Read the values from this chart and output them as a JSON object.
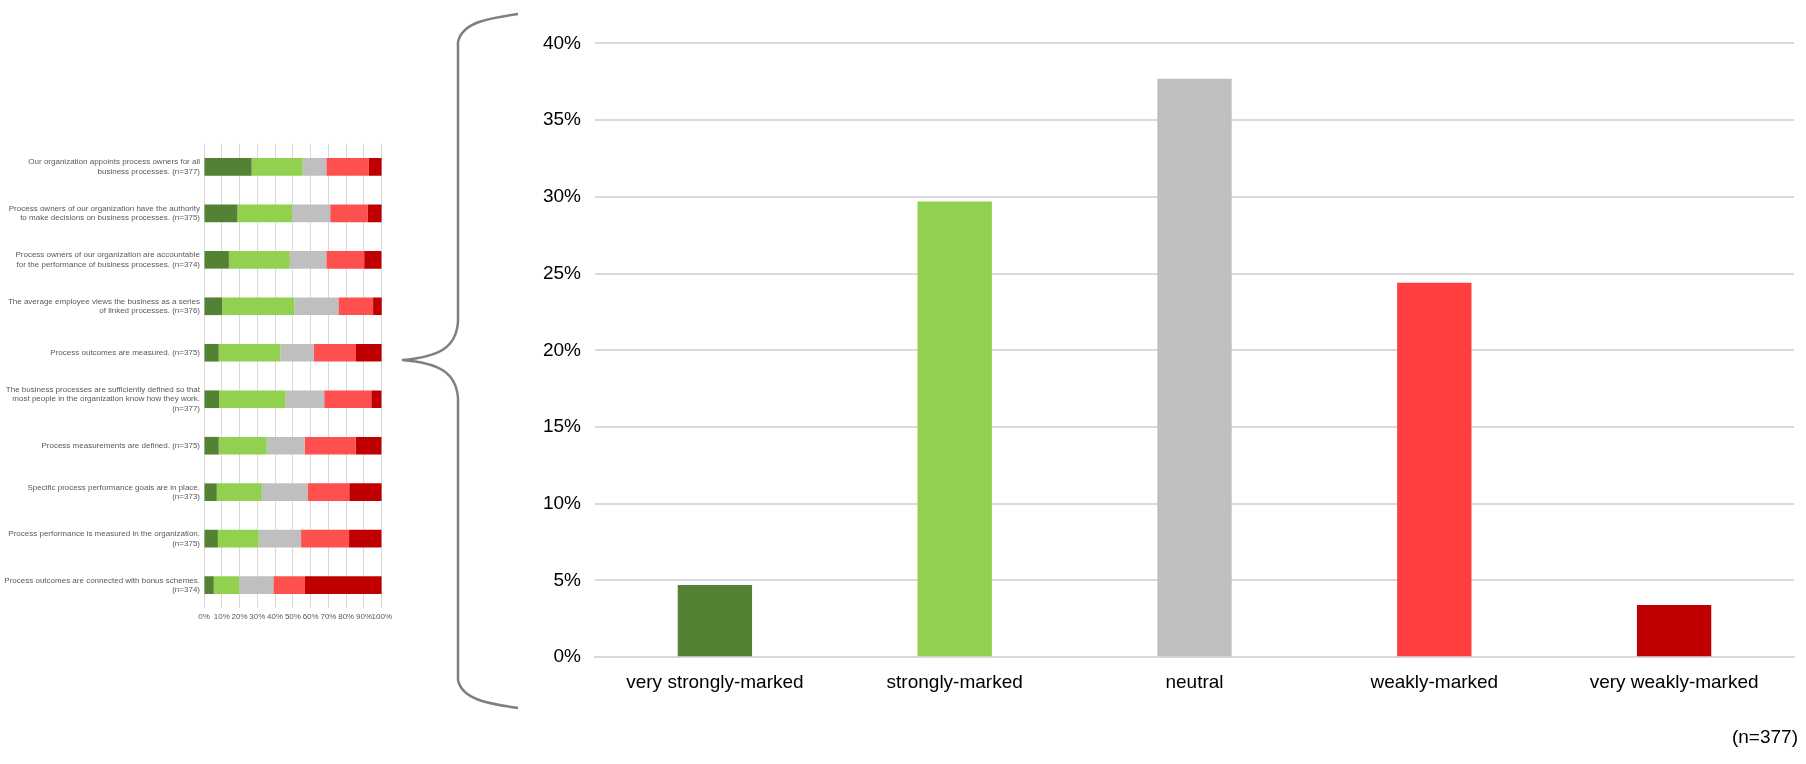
{
  "chart_data": [
    {
      "type": "bar",
      "orientation": "horizontal",
      "stacked": true,
      "categories": [
        "Our organization appoints process owners for all business processes. (n=377)",
        "Process owners of our organization have the authority to make decisions on business processes. (n=375)",
        "Process owners of our organization are accountable for the performance of business processes. (n=374)",
        "The average employee views the business as a series of linked processes. (n=376)",
        "Process outcomes are measured. (n=375)",
        "The business processes are sufficiently defined so that most people in the organization know how they work. (n=377)",
        "Process measurements are defined. (n=375)",
        "Specific process performance goals are in place. (n=373)",
        "Process performance is measured in the organization. (n=375)",
        "Process outcomes are connected with bonus schemes. (n=374)"
      ],
      "series": [
        {
          "color": "#548235",
          "values": [
            26.8,
            18.8,
            14,
            10.2,
            8.3,
            8.5,
            8.3,
            7.2,
            7.8,
            5.5
          ]
        },
        {
          "color": "#92d050",
          "values": [
            28.7,
            30.7,
            34.3,
            40.7,
            34.7,
            37.3,
            27,
            25.3,
            23,
            14.3
          ]
        },
        {
          "color": "#bfbfbf",
          "values": [
            13.3,
            21.5,
            20.5,
            24.7,
            18.8,
            21.8,
            21.3,
            25.7,
            23.8,
            19.2
          ]
        },
        {
          "color": "#ff5050",
          "values": [
            23.7,
            21.2,
            21.3,
            19.5,
            23.7,
            26.5,
            28.8,
            23.5,
            27,
            17.8
          ]
        },
        {
          "color": "#c00000",
          "values": [
            7.5,
            7.8,
            9.8,
            5,
            14.5,
            5.8,
            14.5,
            18.3,
            18.3,
            43.2
          ]
        }
      ],
      "xlim": [
        0,
        100
      ],
      "xticks": [
        {
          "value": 0,
          "label": "0%"
        },
        {
          "value": 10,
          "label": "10%"
        },
        {
          "value": 20,
          "label": "20%"
        },
        {
          "value": 30,
          "label": "30%"
        },
        {
          "value": 40,
          "label": "40%"
        },
        {
          "value": 50,
          "label": "50%"
        },
        {
          "value": 60,
          "label": "60%"
        },
        {
          "value": 70,
          "label": "70%"
        },
        {
          "value": 80,
          "label": "80%"
        },
        {
          "value": 90,
          "label": "90%"
        },
        {
          "value": 100,
          "label": "100%"
        }
      ],
      "grid": "x"
    },
    {
      "type": "bar",
      "categories": [
        "very strongly-marked",
        "strongly-marked",
        "neutral",
        "weakly-marked",
        "very weakly-marked"
      ],
      "values": [
        4.7,
        29.7,
        37.7,
        24.4,
        3.4
      ],
      "colors": [
        "#548235",
        "#92d050",
        "#bfbfbf",
        "#ff3f3f",
        "#c00000"
      ],
      "ylim": [
        0,
        40
      ],
      "yticks": [
        {
          "value": 0,
          "label": "0%"
        },
        {
          "value": 5,
          "label": "5%"
        },
        {
          "value": 10,
          "label": "10%"
        },
        {
          "value": 15,
          "label": "15%"
        },
        {
          "value": 20,
          "label": "20%"
        },
        {
          "value": 25,
          "label": "25%"
        },
        {
          "value": 30,
          "label": "30%"
        },
        {
          "value": 35,
          "label": "35%"
        },
        {
          "value": 40,
          "label": "40%"
        }
      ],
      "grid": "y",
      "annotations": [
        "(n=377)"
      ]
    }
  ]
}
